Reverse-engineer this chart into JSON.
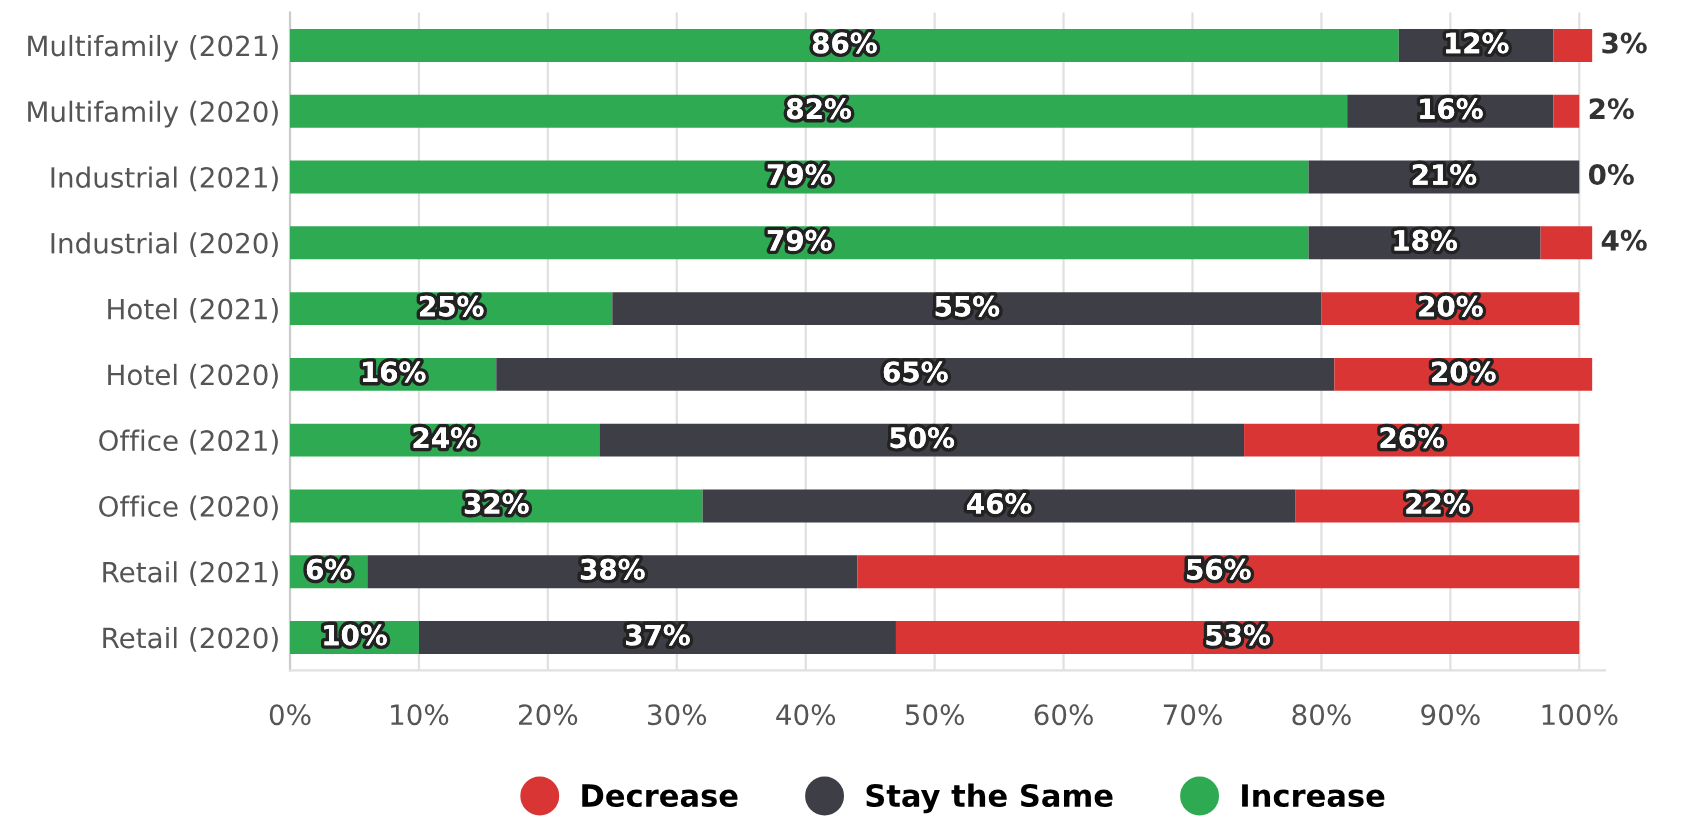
{
  "chart_data": {
    "type": "bar",
    "orientation": "horizontal",
    "stacked": true,
    "categories": [
      "Multifamily (2021)",
      "Multifamily (2020)",
      "Industrial (2021)",
      "Industrial (2020)",
      "Hotel (2021)",
      "Hotel (2020)",
      "Office (2021)",
      "Office (2020)",
      "Retail (2021)",
      "Retail (2020)"
    ],
    "series": [
      {
        "name": "Increase",
        "color": "#2eaa52",
        "values": [
          86,
          82,
          79,
          79,
          25,
          16,
          24,
          32,
          6,
          10
        ],
        "value_labels": [
          "86%",
          "82%",
          "79%",
          "79%",
          "25%",
          "16%",
          "24%",
          "32%",
          "6%",
          "10%"
        ]
      },
      {
        "name": "Stay the Same",
        "color": "#3e3e46",
        "values": [
          12,
          16,
          21,
          18,
          55,
          65,
          50,
          46,
          38,
          37
        ],
        "value_labels": [
          "12%",
          "16%",
          "21%",
          "18%",
          "55%",
          "65%",
          "50%",
          "46%",
          "38%",
          "37%"
        ]
      },
      {
        "name": "Decrease",
        "color": "#d93535",
        "values": [
          3,
          2,
          0,
          4,
          20,
          20,
          26,
          22,
          56,
          53
        ],
        "value_labels": [
          "3%",
          "2%",
          "0%",
          "4%",
          "20%",
          "20%",
          "26%",
          "22%",
          "56%",
          "53%"
        ]
      }
    ],
    "xlim": [
      0,
      102
    ],
    "xticks": [
      {
        "value": 0,
        "label": "0%"
      },
      {
        "value": 10,
        "label": "10%"
      },
      {
        "value": 20,
        "label": "20%"
      },
      {
        "value": 30,
        "label": "30%"
      },
      {
        "value": 40,
        "label": "40%"
      },
      {
        "value": 50,
        "label": "50%"
      },
      {
        "value": 60,
        "label": "60%"
      },
      {
        "value": 70,
        "label": "70%"
      },
      {
        "value": 80,
        "label": "80%"
      },
      {
        "value": 90,
        "label": "90%"
      },
      {
        "value": 100,
        "label": "100%"
      }
    ],
    "grid": "x",
    "legend": "bottom",
    "marker": "circle"
  }
}
